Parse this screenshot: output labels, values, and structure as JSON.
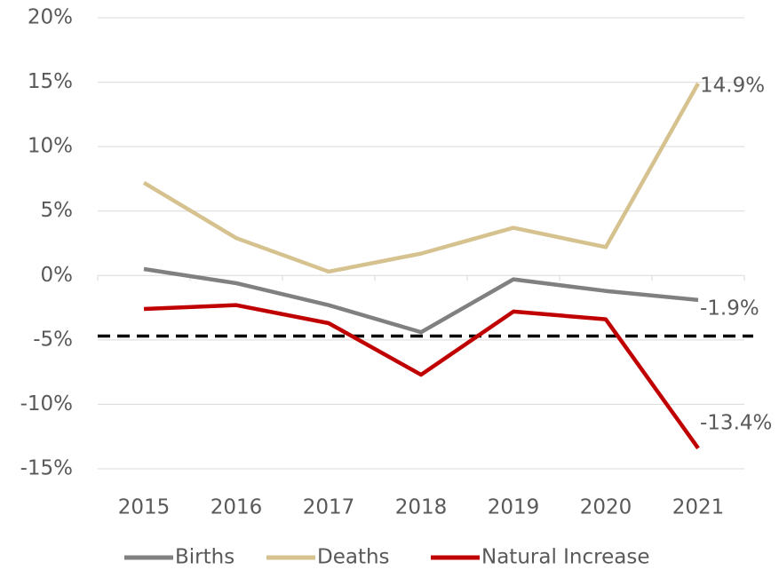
{
  "chart_data": {
    "type": "line",
    "categories": [
      "2015",
      "2016",
      "2017",
      "2018",
      "2019",
      "2020",
      "2021"
    ],
    "series": [
      {
        "name": "Births",
        "color": "#808080",
        "values": [
          0.5,
          -0.6,
          -2.3,
          -4.4,
          -0.3,
          -1.2,
          -1.9
        ],
        "value_labels": [
          null,
          null,
          null,
          null,
          null,
          null,
          "-1.9%"
        ]
      },
      {
        "name": "Deaths",
        "color": "#d6c28f",
        "values": [
          7.2,
          2.9,
          0.3,
          1.7,
          3.7,
          2.2,
          14.9
        ],
        "value_labels": [
          null,
          null,
          null,
          null,
          null,
          null,
          "14.9%"
        ]
      },
      {
        "name": "Natural Increase",
        "color": "#c00000",
        "values": [
          -2.6,
          -2.3,
          -3.7,
          -7.7,
          -2.8,
          -3.4,
          -13.4
        ],
        "value_labels": [
          null,
          null,
          null,
          null,
          null,
          null,
          "-13.4%"
        ]
      }
    ],
    "reference_line": -4.7,
    "ylim": [
      -15,
      20
    ],
    "yticks": [
      {
        "value": -15,
        "label": "-15%"
      },
      {
        "value": -10,
        "label": "-10%"
      },
      {
        "value": -5,
        "label": "-5%"
      },
      {
        "value": 0,
        "label": "0%"
      },
      {
        "value": 5,
        "label": "5%"
      },
      {
        "value": 10,
        "label": "10%"
      },
      {
        "value": 15,
        "label": "15%"
      },
      {
        "value": 20,
        "label": "20%"
      }
    ],
    "grid": true,
    "legend": "bottom"
  }
}
